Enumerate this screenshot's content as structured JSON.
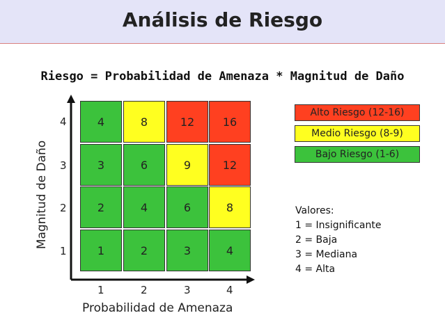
{
  "title": "Análisis de Riesgo",
  "formula": "Riesgo = Probabilidad de Amenaza * Magnitud de Daño",
  "y_axis_label": "Magnitud de Daño",
  "x_axis_label": "Probabilidad de Amenaza",
  "y_ticks": [
    "4",
    "3",
    "2",
    "1"
  ],
  "x_ticks": [
    "1",
    "2",
    "3",
    "4"
  ],
  "matrix": [
    [
      {
        "value": "4",
        "level": "low"
      },
      {
        "value": "8",
        "level": "mid"
      },
      {
        "value": "12",
        "level": "high"
      },
      {
        "value": "16",
        "level": "high"
      }
    ],
    [
      {
        "value": "3",
        "level": "low"
      },
      {
        "value": "6",
        "level": "low"
      },
      {
        "value": "9",
        "level": "mid"
      },
      {
        "value": "12",
        "level": "high"
      }
    ],
    [
      {
        "value": "2",
        "level": "low"
      },
      {
        "value": "4",
        "level": "low"
      },
      {
        "value": "6",
        "level": "low"
      },
      {
        "value": "8",
        "level": "mid"
      }
    ],
    [
      {
        "value": "1",
        "level": "low"
      },
      {
        "value": "2",
        "level": "low"
      },
      {
        "value": "3",
        "level": "low"
      },
      {
        "value": "4",
        "level": "low"
      }
    ]
  ],
  "legend": [
    {
      "label": "Alto Riesgo (12-16)",
      "level": "high"
    },
    {
      "label": "Medio Riesgo (8-9)",
      "level": "mid"
    },
    {
      "label": "Bajo Riesgo (1-6)",
      "level": "low"
    }
  ],
  "values_title": "Valores:",
  "values": [
    "1 = Insignificante",
    "2 = Baja",
    "3 = Mediana",
    "4 = Alta"
  ],
  "colors": {
    "high": "#ff4020",
    "mid": "#ffff20",
    "low": "#3cc23c"
  }
}
